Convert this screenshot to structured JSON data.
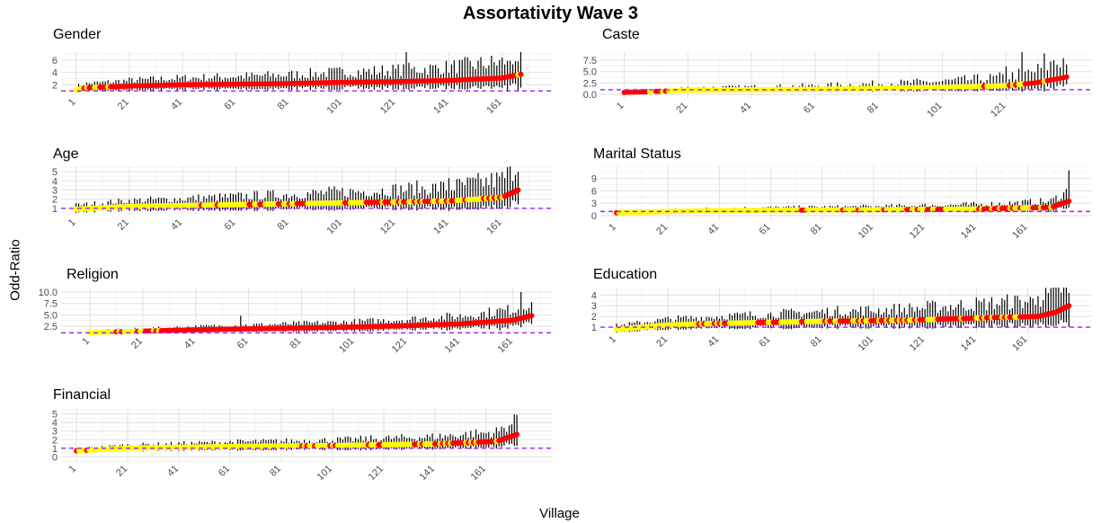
{
  "chart_data": {
    "title": "Assortativity Wave 3",
    "xlabel": "Village",
    "ylabel": "Odd-Ratio",
    "type": "scatter",
    "grid": true,
    "reference_line": {
      "y": 1,
      "style": "dashed",
      "color": "#a020f0"
    },
    "colors": {
      "significant": "#ff0000",
      "not_significant": "#ffff00",
      "error_bar": "#000000"
    },
    "panels": [
      {
        "title": "Gender",
        "n_villages": 168,
        "xticks": [
          "1",
          "21",
          "41",
          "61",
          "81",
          "101",
          "121",
          "141",
          "161"
        ],
        "yticks": [
          2,
          4,
          6
        ],
        "ylim": [
          0.3,
          7.3
        ],
        "estimate_curve": [
          [
            1,
            1.2
          ],
          [
            5,
            1.5
          ],
          [
            21,
            1.8
          ],
          [
            41,
            2.0
          ],
          [
            61,
            2.1
          ],
          [
            81,
            2.2
          ],
          [
            101,
            2.4
          ],
          [
            121,
            2.5
          ],
          [
            141,
            2.7
          ],
          [
            161,
            3.1
          ],
          [
            168,
            3.7
          ]
        ],
        "ci_log_halfwidth": 0.38,
        "outlier_upper": [
          [
            125,
            7.3
          ],
          [
            163,
            5.9
          ],
          [
            167,
            5.8
          ]
        ]
      },
      {
        "title": "Caste",
        "n_villages": 140,
        "xticks": [
          "1",
          "21",
          "41",
          "61",
          "81",
          "101",
          "121"
        ],
        "yticks": [
          0.0,
          2.5,
          5.0,
          7.5
        ],
        "ylim": [
          -1,
          9.3
        ],
        "estimate_curve": [
          [
            1,
            0.4
          ],
          [
            5,
            0.5
          ],
          [
            10,
            0.6
          ],
          [
            21,
            0.9
          ],
          [
            41,
            1.0
          ],
          [
            61,
            1.1
          ],
          [
            81,
            1.3
          ],
          [
            101,
            1.5
          ],
          [
            121,
            1.9
          ],
          [
            130,
            2.5
          ],
          [
            140,
            3.8
          ]
        ],
        "ci_log_halfwidth": 0.45,
        "outlier_upper": [
          [
            121,
            6.2
          ],
          [
            126,
            9.5
          ],
          [
            133,
            9.0
          ],
          [
            136,
            7.5
          ]
        ]
      },
      {
        "title": "Age",
        "n_villages": 167,
        "xticks": [
          "1",
          "21",
          "41",
          "61",
          "81",
          "101",
          "121",
          "141",
          "161"
        ],
        "yticks": [
          1,
          2,
          3,
          4,
          5
        ],
        "ylim": [
          0.2,
          5.6
        ],
        "estimate_curve": [
          [
            1,
            0.9
          ],
          [
            21,
            1.2
          ],
          [
            41,
            1.3
          ],
          [
            61,
            1.4
          ],
          [
            81,
            1.5
          ],
          [
            101,
            1.6
          ],
          [
            121,
            1.7
          ],
          [
            141,
            1.8
          ],
          [
            161,
            2.2
          ],
          [
            167,
            3.0
          ]
        ],
        "ci_log_halfwidth": 0.4,
        "outlier_upper": [
          [
            141,
            4.3
          ],
          [
            167,
            5.0
          ]
        ]
      },
      {
        "title": "Marital Status",
        "n_villages": 177,
        "xticks": [
          "1",
          "21",
          "41",
          "61",
          "81",
          "101",
          "121",
          "141",
          "161"
        ],
        "yticks": [
          0,
          3,
          6,
          9
        ],
        "ylim": [
          -1.1,
          12
        ],
        "estimate_curve": [
          [
            1,
            0.7
          ],
          [
            21,
            1.0
          ],
          [
            41,
            1.2
          ],
          [
            61,
            1.3
          ],
          [
            101,
            1.4
          ],
          [
            141,
            1.6
          ],
          [
            170,
            2.0
          ],
          [
            177,
            3.5
          ]
        ],
        "ci_log_halfwidth": 0.35,
        "outlier_upper": [
          [
            177,
            11.0
          ]
        ]
      },
      {
        "title": "Religion",
        "n_villages": 168,
        "xticks": [
          "1",
          "21",
          "41",
          "61",
          "81",
          "101",
          "121",
          "141",
          "161"
        ],
        "yticks": [
          2.5,
          5.0,
          7.5,
          10.0
        ],
        "ylim": [
          0.7,
          11
        ],
        "estimate_curve": [
          [
            1,
            1.1
          ],
          [
            21,
            1.4
          ],
          [
            41,
            1.7
          ],
          [
            61,
            1.9
          ],
          [
            81,
            2.1
          ],
          [
            101,
            2.3
          ],
          [
            121,
            2.6
          ],
          [
            141,
            3.0
          ],
          [
            161,
            3.8
          ],
          [
            168,
            4.8
          ]
        ],
        "ci_log_halfwidth": 0.3,
        "outlier_upper": [
          [
            58,
            4.8
          ],
          [
            164,
            10.0
          ],
          [
            156,
            6.5
          ]
        ]
      },
      {
        "title": "Education",
        "n_villages": 177,
        "xticks": [
          "1",
          "21",
          "41",
          "61",
          "81",
          "101",
          "121",
          "141",
          "161"
        ],
        "yticks": [
          1,
          2,
          3,
          4
        ],
        "ylim": [
          0.5,
          4.7
        ],
        "estimate_curve": [
          [
            1,
            0.8
          ],
          [
            21,
            1.2
          ],
          [
            41,
            1.35
          ],
          [
            61,
            1.45
          ],
          [
            81,
            1.55
          ],
          [
            101,
            1.6
          ],
          [
            121,
            1.7
          ],
          [
            141,
            1.85
          ],
          [
            165,
            2.0
          ],
          [
            172,
            2.4
          ],
          [
            177,
            3.0
          ]
        ],
        "ci_log_halfwidth": 0.35,
        "outlier_upper": [
          [
            165,
            3.9
          ],
          [
            177,
            4.2
          ]
        ]
      },
      {
        "title": "Financial",
        "n_villages": 173,
        "xticks": [
          "1",
          "21",
          "41",
          "61",
          "81",
          "101",
          "121",
          "141",
          "161"
        ],
        "yticks": [
          0,
          1,
          2,
          3,
          4,
          5
        ],
        "ylim": [
          -0.6,
          5.6
        ],
        "estimate_curve": [
          [
            1,
            0.7
          ],
          [
            21,
            1.0
          ],
          [
            41,
            1.1
          ],
          [
            61,
            1.2
          ],
          [
            101,
            1.3
          ],
          [
            141,
            1.5
          ],
          [
            165,
            1.8
          ],
          [
            173,
            2.6
          ]
        ],
        "ci_log_halfwidth": 0.3,
        "outlier_upper": [
          [
            173,
            4.9
          ]
        ]
      }
    ]
  }
}
